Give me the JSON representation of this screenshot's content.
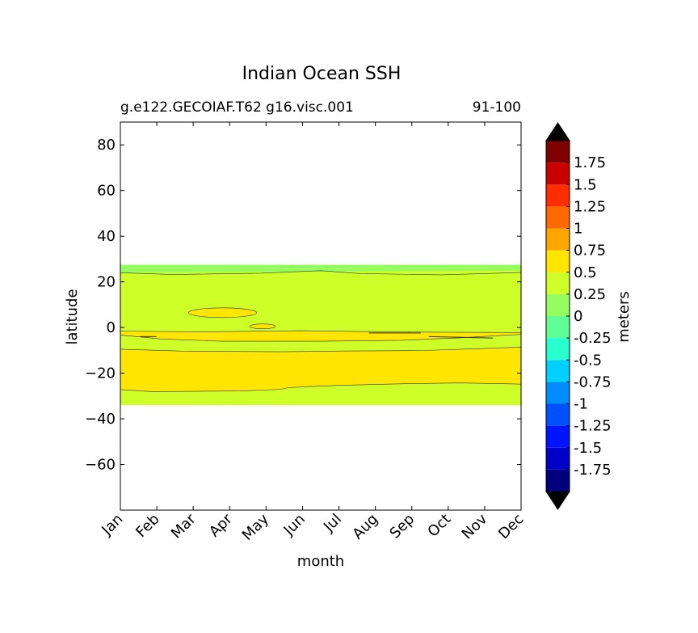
{
  "chart_data": {
    "type": "heatmap",
    "title": "Indian Ocean SSH",
    "subtitle_left": "g.e122.GECOIAF.T62 g16.visc.001",
    "subtitle_right": "91-100",
    "xlabel": "month",
    "ylabel": "latitude",
    "x_ticks": [
      "Jan",
      "Feb",
      "Mar",
      "Apr",
      "May",
      "Jun",
      "Jul",
      "Aug",
      "Sep",
      "Oct",
      "Nov",
      "Dec"
    ],
    "ylim": [
      -80,
      90
    ],
    "y_ticks": [
      80,
      60,
      40,
      20,
      0,
      -20,
      -40,
      -60
    ],
    "y_tick_labels": [
      "80",
      "60",
      "40",
      "20",
      "0",
      "−20",
      "−40",
      "−60"
    ],
    "colorbar": {
      "label": "meters",
      "extend": "both",
      "levels": [
        -2,
        -1.75,
        -1.5,
        -1.25,
        -1,
        -0.75,
        -0.5,
        -0.25,
        0,
        0.25,
        0.5,
        0.75,
        1,
        1.25,
        1.5,
        1.75,
        2
      ],
      "tick_labels": [
        "-1.75",
        "-1.5",
        "-1.25",
        "-1",
        "-0.75",
        "-0.5",
        "-0.25",
        "0",
        "0.25",
        "0.5",
        "0.75",
        "1",
        "1.25",
        "1.5",
        "1.75"
      ],
      "colors": [
        "#00007f",
        "#0000c8",
        "#0014ff",
        "#0050ff",
        "#008cff",
        "#00d0ff",
        "#29ffce",
        "#60ff96",
        "#96ff60",
        "#ceff29",
        "#ffe500",
        "#ffa500",
        "#ff6a00",
        "#ff2d00",
        "#c80000",
        "#7f0000"
      ],
      "under_color": "#000000",
      "over_color": "#000000"
    },
    "regions": [
      {
        "name": "0-0.25 band",
        "color": "#96ff60",
        "top": [
          27.5,
          27.5
        ],
        "bottom": [
          24,
          24
        ]
      },
      {
        "name": "0.25-0.5 band",
        "color": "#ceff29",
        "top": [
          24,
          25
        ],
        "bottom": [
          -34,
          -34
        ]
      },
      {
        "name": "0.5-0.75 south band",
        "color": "#ffe500",
        "top": [
          -9.5,
          -8.5
        ],
        "bottom": [
          -27,
          -24.5
        ]
      },
      {
        "name": "0.5-0.75 equatorial band",
        "color": "#ffe500",
        "top": [
          -1.5,
          -2.5
        ],
        "bottom": [
          -6,
          -5.5
        ]
      },
      {
        "name": "0.5-0.75 patch Mar-Apr",
        "color": "#ffe500",
        "lat": 6.5
      },
      {
        "name": "0.5-0.75 patch May",
        "color": "#ffe500",
        "lat": 0.5
      }
    ]
  }
}
